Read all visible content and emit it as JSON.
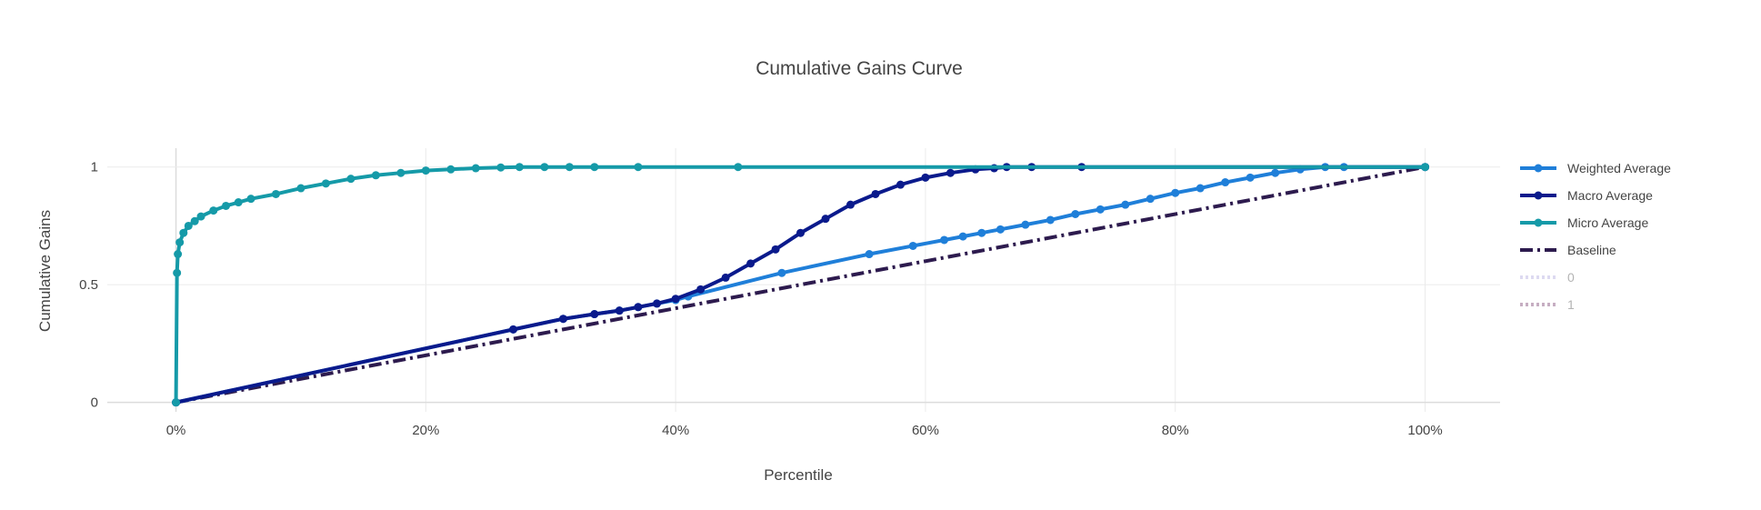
{
  "chart_data": {
    "type": "line",
    "title": "Cumulative Gains Curve",
    "xlabel": "Percentile",
    "ylabel": "Cumulative Gains",
    "xlim": [
      -0.055,
      1.06
    ],
    "ylim": [
      -0.04,
      1.08
    ],
    "x_ticks": [
      {
        "value": 0,
        "label": "0%"
      },
      {
        "value": 0.2,
        "label": "20%"
      },
      {
        "value": 0.4,
        "label": "40%"
      },
      {
        "value": 0.6,
        "label": "60%"
      },
      {
        "value": 0.8,
        "label": "80%"
      },
      {
        "value": 1.0,
        "label": "100%"
      }
    ],
    "y_ticks": [
      {
        "value": 0,
        "label": "0"
      },
      {
        "value": 0.5,
        "label": "0.5"
      },
      {
        "value": 1,
        "label": "1"
      }
    ],
    "grid": true,
    "legend_position": "right",
    "series": [
      {
        "name": "Weighted Average",
        "color": "#1f7fd9",
        "mode": "lines+markers",
        "dash": "solid",
        "x": [
          0,
          0.27,
          0.31,
          0.335,
          0.355,
          0.37,
          0.385,
          0.4,
          0.41,
          0.485,
          0.555,
          0.59,
          0.615,
          0.63,
          0.645,
          0.66,
          0.68,
          0.7,
          0.72,
          0.74,
          0.76,
          0.78,
          0.8,
          0.82,
          0.84,
          0.86,
          0.88,
          0.9,
          0.92,
          0.935,
          1.0
        ],
        "y": [
          0,
          0.31,
          0.355,
          0.375,
          0.39,
          0.405,
          0.42,
          0.435,
          0.45,
          0.55,
          0.63,
          0.665,
          0.69,
          0.705,
          0.72,
          0.735,
          0.755,
          0.775,
          0.8,
          0.82,
          0.84,
          0.865,
          0.89,
          0.91,
          0.935,
          0.955,
          0.975,
          0.99,
          1.0,
          1.0,
          1.0
        ]
      },
      {
        "name": "Macro Average",
        "color": "#0a1a8c",
        "mode": "lines+markers",
        "dash": "solid",
        "x": [
          0,
          0.27,
          0.31,
          0.335,
          0.355,
          0.37,
          0.385,
          0.4,
          0.42,
          0.44,
          0.46,
          0.48,
          0.5,
          0.52,
          0.54,
          0.56,
          0.58,
          0.6,
          0.62,
          0.64,
          0.655,
          0.665,
          0.685,
          0.725,
          1.0
        ],
        "y": [
          0,
          0.31,
          0.355,
          0.375,
          0.39,
          0.405,
          0.42,
          0.44,
          0.48,
          0.53,
          0.59,
          0.65,
          0.72,
          0.78,
          0.84,
          0.885,
          0.925,
          0.955,
          0.975,
          0.99,
          0.995,
          1.0,
          1.0,
          1.0,
          1.0
        ]
      },
      {
        "name": "Micro Average",
        "color": "#159aa8",
        "mode": "lines+markers",
        "dash": "solid",
        "x": [
          0,
          0.0008,
          0.0015,
          0.003,
          0.006,
          0.01,
          0.015,
          0.02,
          0.03,
          0.04,
          0.05,
          0.06,
          0.08,
          0.1,
          0.12,
          0.14,
          0.16,
          0.18,
          0.2,
          0.22,
          0.24,
          0.26,
          0.275,
          0.295,
          0.315,
          0.335,
          0.37,
          0.45,
          1.0
        ],
        "y": [
          0,
          0.55,
          0.63,
          0.68,
          0.72,
          0.75,
          0.77,
          0.79,
          0.815,
          0.835,
          0.85,
          0.865,
          0.885,
          0.91,
          0.93,
          0.95,
          0.965,
          0.975,
          0.985,
          0.99,
          0.995,
          0.998,
          1.0,
          1.0,
          1.0,
          1.0,
          1.0,
          1.0,
          1.0
        ]
      },
      {
        "name": "Baseline",
        "color": "#2d1b4e",
        "mode": "lines",
        "dash": "dashdot",
        "x": [
          0,
          1
        ],
        "y": [
          0,
          1
        ]
      },
      {
        "name": "0",
        "color": "#c7c3e8",
        "mode": "lines",
        "dash": "dot",
        "visible": "legendonly",
        "x": [],
        "y": []
      },
      {
        "name": "1",
        "color": "#a17a9a",
        "mode": "lines",
        "dash": "dot",
        "visible": "legendonly",
        "x": [],
        "y": []
      }
    ]
  }
}
